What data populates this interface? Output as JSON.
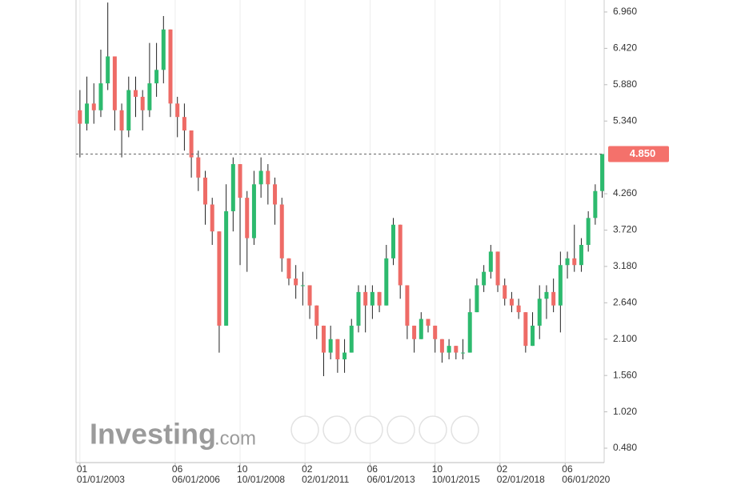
{
  "chart_data": {
    "type": "candlestick",
    "x": [
      2003,
      2003.25,
      2003.5,
      2003.75,
      2004,
      2004.25,
      2004.5,
      2004.75,
      2005,
      2005.25,
      2005.5,
      2005.75,
      2006,
      2006.25,
      2006.5,
      2006.75,
      2007,
      2007.25,
      2007.5,
      2007.75,
      2008,
      2008.25,
      2008.5,
      2008.75,
      2009,
      2009.25,
      2009.5,
      2009.75,
      2010,
      2010.25,
      2010.5,
      2010.75,
      2011,
      2011.25,
      2011.5,
      2011.75,
      2012,
      2012.25,
      2012.5,
      2012.75,
      2013,
      2013.25,
      2013.5,
      2013.75,
      2014,
      2014.25,
      2014.5,
      2014.75,
      2015,
      2015.25,
      2015.5,
      2015.75,
      2016,
      2016.25,
      2016.5,
      2016.75,
      2017,
      2017.25,
      2017.5,
      2017.75,
      2018,
      2018.25,
      2018.5,
      2018.75,
      2019,
      2019.25,
      2019.5,
      2019.75,
      2020,
      2020.25,
      2020.5,
      2020.75,
      2021,
      2021.25,
      2021.5,
      2021.75
    ],
    "candles": [
      [
        5.5,
        5.8,
        4.8,
        5.3
      ],
      [
        5.3,
        6.0,
        5.2,
        5.6
      ],
      [
        5.6,
        5.9,
        5.3,
        5.5
      ],
      [
        5.5,
        6.4,
        5.4,
        5.9
      ],
      [
        5.9,
        7.1,
        5.8,
        6.3
      ],
      [
        6.3,
        6.3,
        5.2,
        5.5
      ],
      [
        5.5,
        5.6,
        4.8,
        5.2
      ],
      [
        5.2,
        6.0,
        5.1,
        5.8
      ],
      [
        5.8,
        6.0,
        5.4,
        5.7
      ],
      [
        5.7,
        5.8,
        5.2,
        5.5
      ],
      [
        5.5,
        6.5,
        5.4,
        5.9
      ],
      [
        5.9,
        6.5,
        5.7,
        6.1
      ],
      [
        6.1,
        6.9,
        5.9,
        6.7
      ],
      [
        6.7,
        6.7,
        5.4,
        5.6
      ],
      [
        5.6,
        5.7,
        5.1,
        5.4
      ],
      [
        5.4,
        5.6,
        4.9,
        5.2
      ],
      [
        5.2,
        5.2,
        4.5,
        4.8
      ],
      [
        4.8,
        4.9,
        4.3,
        4.5
      ],
      [
        4.5,
        4.6,
        3.8,
        4.1
      ],
      [
        4.1,
        4.2,
        3.5,
        3.7
      ],
      [
        3.7,
        3.7,
        1.9,
        2.3
      ],
      [
        2.3,
        4.4,
        2.3,
        4.0
      ],
      [
        4.0,
        4.8,
        3.7,
        4.7
      ],
      [
        4.7,
        4.7,
        3.2,
        4.2
      ],
      [
        4.2,
        4.3,
        3.1,
        3.6
      ],
      [
        3.6,
        4.6,
        3.5,
        4.4
      ],
      [
        4.4,
        4.8,
        4.2,
        4.6
      ],
      [
        4.6,
        4.7,
        4.1,
        4.4
      ],
      [
        4.4,
        4.5,
        3.8,
        4.1
      ],
      [
        4.1,
        4.2,
        3.1,
        3.3
      ],
      [
        3.3,
        3.3,
        2.9,
        3.0
      ],
      [
        3.0,
        3.2,
        2.7,
        2.9
      ],
      [
        2.9,
        3.1,
        2.6,
        2.9
      ],
      [
        2.9,
        2.9,
        2.4,
        2.6
      ],
      [
        2.6,
        2.6,
        2.1,
        2.3
      ],
      [
        2.3,
        2.3,
        1.55,
        1.9
      ],
      [
        1.9,
        2.3,
        1.8,
        2.1
      ],
      [
        2.1,
        2.1,
        1.6,
        1.8
      ],
      [
        1.8,
        2.1,
        1.6,
        1.9
      ],
      [
        1.9,
        2.4,
        1.9,
        2.3
      ],
      [
        2.3,
        2.9,
        2.2,
        2.8
      ],
      [
        2.8,
        2.9,
        2.2,
        2.6
      ],
      [
        2.6,
        2.9,
        2.4,
        2.8
      ],
      [
        2.8,
        2.8,
        2.5,
        2.6
      ],
      [
        2.6,
        3.5,
        2.6,
        3.3
      ],
      [
        3.3,
        3.9,
        3.2,
        3.8
      ],
      [
        3.8,
        3.8,
        2.7,
        2.9
      ],
      [
        2.9,
        2.9,
        2.1,
        2.3
      ],
      [
        2.3,
        2.3,
        1.9,
        2.1
      ],
      [
        2.1,
        2.5,
        2.1,
        2.4
      ],
      [
        2.4,
        2.4,
        2.2,
        2.3
      ],
      [
        2.3,
        2.3,
        1.9,
        2.1
      ],
      [
        2.1,
        2.1,
        1.75,
        1.9
      ],
      [
        1.9,
        2.1,
        1.8,
        2.0
      ],
      [
        2.0,
        2.0,
        1.8,
        1.9
      ],
      [
        1.9,
        2.1,
        1.8,
        1.9
      ],
      [
        1.9,
        2.7,
        1.9,
        2.5
      ],
      [
        2.5,
        3.0,
        2.5,
        2.9
      ],
      [
        2.9,
        3.2,
        2.8,
        3.1
      ],
      [
        3.1,
        3.5,
        3.0,
        3.4
      ],
      [
        3.4,
        3.4,
        2.8,
        2.9
      ],
      [
        2.9,
        3.0,
        2.6,
        2.7
      ],
      [
        2.7,
        2.8,
        2.5,
        2.6
      ],
      [
        2.6,
        2.7,
        2.4,
        2.5
      ],
      [
        2.5,
        2.5,
        1.9,
        2.0
      ],
      [
        2.0,
        2.5,
        2.0,
        2.3
      ],
      [
        2.3,
        2.9,
        2.1,
        2.7
      ],
      [
        2.7,
        2.9,
        2.4,
        2.8
      ],
      [
        2.8,
        3.0,
        2.5,
        2.6
      ],
      [
        2.6,
        3.4,
        2.2,
        3.2
      ],
      [
        3.2,
        3.4,
        3.0,
        3.3
      ],
      [
        3.3,
        3.8,
        3.1,
        3.2
      ],
      [
        3.2,
        3.6,
        3.1,
        3.5
      ],
      [
        3.5,
        4.0,
        3.4,
        3.9
      ],
      [
        3.9,
        4.4,
        3.8,
        4.3
      ],
      [
        4.3,
        4.85,
        4.2,
        4.85
      ]
    ],
    "up_color": "#2dba6e",
    "down_color": "#ee6b66",
    "wick_color": "#222222",
    "xlim": [
      2002.86,
      2021.82
    ],
    "ylim": [
      0.266,
      7.138
    ],
    "yticks": [
      {
        "value": 6.96,
        "label": "6.960"
      },
      {
        "value": 6.42,
        "label": "6.420"
      },
      {
        "value": 5.88,
        "label": "5.880"
      },
      {
        "value": 5.34,
        "label": "5.340"
      },
      {
        "value": 4.26,
        "label": "4.260"
      },
      {
        "value": 3.72,
        "label": "3.720"
      },
      {
        "value": 3.18,
        "label": "3.180"
      },
      {
        "value": 2.64,
        "label": "2.640"
      },
      {
        "value": 2.1,
        "label": "2.100"
      },
      {
        "value": 1.56,
        "label": "1.560"
      },
      {
        "value": 1.02,
        "label": "1.020"
      },
      {
        "value": 0.48,
        "label": "0.480"
      }
    ],
    "xticks": [
      {
        "value": 2003,
        "label": "01"
      },
      {
        "value": 2006.42,
        "label": "06"
      },
      {
        "value": 2008.75,
        "label": "10"
      },
      {
        "value": 2011.08,
        "label": "02"
      },
      {
        "value": 2013.42,
        "label": "06"
      },
      {
        "value": 2015.75,
        "label": "10"
      },
      {
        "value": 2018.08,
        "label": "02"
      },
      {
        "value": 2020.42,
        "label": "06"
      }
    ],
    "xtick_dates": [
      "01/01/2003",
      "06/01/2006",
      "10/01/2008",
      "02/01/2011",
      "06/01/2013",
      "10/01/2015",
      "02/01/2018",
      "06/01/2020"
    ],
    "grid": true,
    "current_price": {
      "value": 4.85,
      "label": "4.850"
    },
    "current_price_color": "#f4716b",
    "watermark": "Investing",
    "watermark_suffix": ".com"
  }
}
